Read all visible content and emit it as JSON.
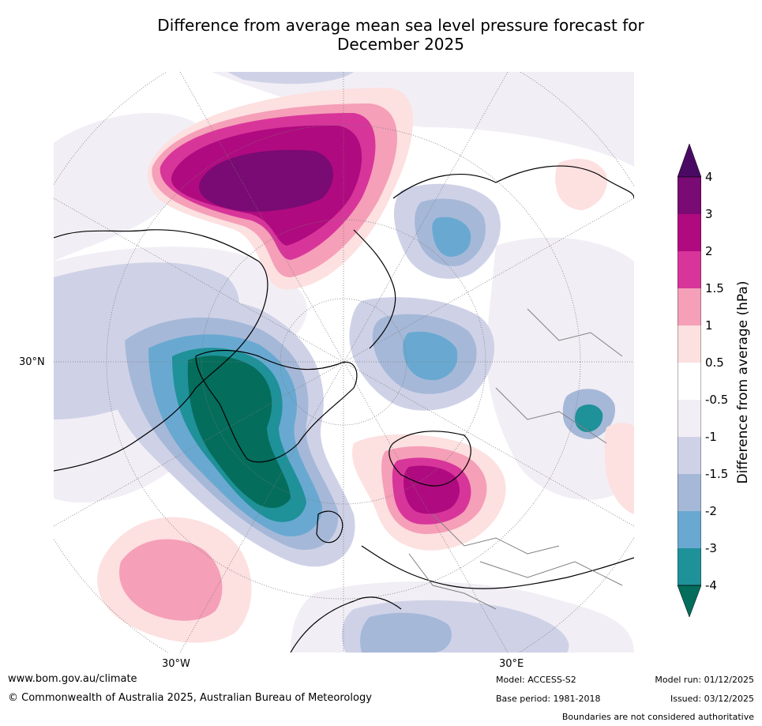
{
  "title_line1": "Difference from average mean sea level pressure forecast for",
  "title_line2": "December 2025",
  "labels": {
    "lat_30n": "30°N",
    "lon_30w": "30°W",
    "lon_30e": "30°E"
  },
  "colorbar": {
    "title": "Difference from average (hPa)",
    "ticks": [
      "4",
      "3",
      "2",
      "1.5",
      "1",
      "0.5",
      "-0.5",
      "-1",
      "-1.5",
      "-2",
      "-3",
      "-4"
    ],
    "colors": {
      "gt4": "#4a0a64",
      "3_4": "#7a0a74",
      "2_3": "#b00a80",
      "1.5_2": "#d8359a",
      "1_1.5": "#f59fb8",
      "0.5_1": "#fde0e0",
      "neutral": "#ffffff",
      "-1_-0.5": "#f2eef5",
      "-1.5_-1": "#cfd2e7",
      "-2_-1.5": "#a6b8d8",
      "-3_-2": "#69a9d1",
      "-4_-3": "#1f9199",
      "lt-4": "#046d5c"
    }
  },
  "footer": {
    "website": "www.bom.gov.au/climate",
    "copyright": "© Commonwealth of Australia 2025, Australian Bureau of Meteorology",
    "model": "Model: ACCESS-S2",
    "base_period": "Base period: 1981-2018",
    "model_run": "Model run: 01/12/2025",
    "issued": "Issued: 03/12/2025",
    "disclaimer": "Boundaries are not considered authoritative"
  }
}
